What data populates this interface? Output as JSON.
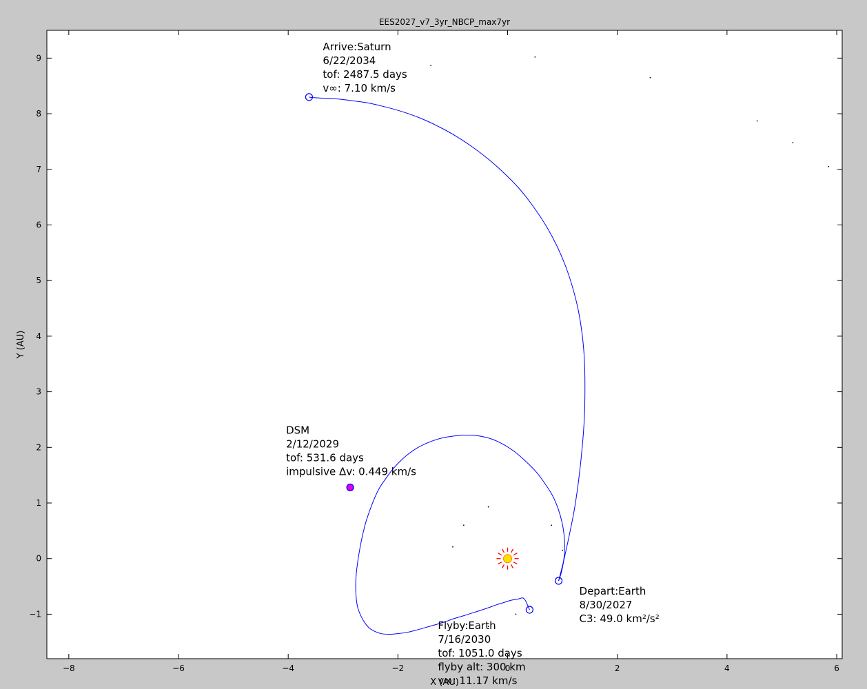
{
  "chart_data": {
    "type": "line",
    "title": "EES2027_v7_3yr_NBCP_max7yr",
    "xlabel": "X (AU)",
    "ylabel": "Y (AU)",
    "xlim": [
      -8.4,
      6.1
    ],
    "ylim": [
      -1.8,
      9.5
    ],
    "xticks": [
      -8,
      -6,
      -4,
      -2,
      0,
      2,
      4,
      6
    ],
    "yticks": [
      -1,
      0,
      1,
      2,
      3,
      4,
      5,
      6,
      7,
      8,
      9
    ],
    "grid": false,
    "trajectory_color": "#0000ff",
    "series": [
      {
        "x": [
          0.93,
          0.98,
          1.02,
          1.04,
          1.03,
          0.99,
          0.92,
          0.82,
          0.68,
          0.52,
          0.33,
          0.13,
          -0.09,
          -0.32,
          -0.55,
          -0.78,
          -1.01,
          -1.23,
          -1.44,
          -1.63,
          -1.81,
          -1.96,
          -2.1,
          -2.22,
          -2.33,
          -2.42,
          -2.5,
          -2.58,
          -2.64,
          -2.69,
          -2.73,
          -2.76,
          -2.77,
          -2.76,
          -2.73,
          -2.67,
          -2.6,
          -2.52,
          -2.42,
          -2.3,
          -2.16,
          -2.01,
          -1.85,
          -1.68,
          -1.5,
          -1.32,
          -1.15,
          -0.98,
          -0.81,
          -0.65,
          -0.49,
          -0.34,
          -0.2,
          -0.07,
          0.06,
          0.18,
          0.3,
          0.4
        ],
        "y": [
          -0.4,
          -0.25,
          -0.05,
          0.18,
          0.42,
          0.66,
          0.9,
          1.13,
          1.35,
          1.56,
          1.75,
          1.92,
          2.06,
          2.16,
          2.21,
          2.22,
          2.2,
          2.16,
          2.09,
          2.0,
          1.88,
          1.75,
          1.6,
          1.44,
          1.28,
          1.1,
          0.9,
          0.67,
          0.44,
          0.2,
          -0.04,
          -0.28,
          -0.5,
          -0.71,
          -0.89,
          -1.04,
          -1.16,
          -1.25,
          -1.31,
          -1.35,
          -1.36,
          -1.35,
          -1.33,
          -1.29,
          -1.24,
          -1.19,
          -1.14,
          -1.08,
          -1.03,
          -0.98,
          -0.93,
          -0.88,
          -0.83,
          -0.79,
          -0.75,
          -0.73,
          -0.72,
          -0.92
        ]
      },
      {
        "x": [
          0.93,
          1.02,
          1.12,
          1.22,
          1.3,
          1.36,
          1.4,
          1.41,
          1.4,
          1.36,
          1.29,
          1.19,
          1.06,
          0.9,
          0.71,
          0.49,
          0.25,
          -0.02,
          -0.31,
          -0.61,
          -0.93,
          -1.26,
          -1.59,
          -1.93,
          -2.26,
          -2.58,
          -2.88,
          -3.15,
          -3.38,
          -3.56,
          -3.62
        ],
        "y": [
          -0.4,
          -0.05,
          0.4,
          0.9,
          1.45,
          2.0,
          2.55,
          3.08,
          3.57,
          4.03,
          4.46,
          4.86,
          5.25,
          5.62,
          5.97,
          6.3,
          6.61,
          6.89,
          7.15,
          7.38,
          7.59,
          7.77,
          7.92,
          8.04,
          8.13,
          8.2,
          8.24,
          8.27,
          8.28,
          8.29,
          8.3
        ]
      }
    ],
    "events": [
      {
        "x": 0.93,
        "y": -0.4,
        "lines": [
          "Depart:Earth",
          "8/30/2027",
          "C3: 49.0 km²/s²"
        ],
        "marker_fill": "none"
      },
      {
        "x": -2.87,
        "y": 1.28,
        "lines": [
          "DSM",
          "2/12/2029",
          "tof: 531.6 days",
          "impulsive Δv: 0.449 km/s"
        ],
        "marker_fill": "#e000e0"
      },
      {
        "x": 0.4,
        "y": -0.92,
        "lines": [
          "Flyby:Earth",
          "7/16/2030",
          "tof: 1051.0 days",
          "flyby alt: 300 km",
          "v∞: 11.17 km/s"
        ],
        "marker_fill": "none"
      },
      {
        "x": -3.62,
        "y": 8.3,
        "lines": [
          "Arrive:Saturn",
          "6/22/2034",
          "tof: 2487.5 days",
          "v∞: 7.10 km/s"
        ],
        "marker_fill": "none"
      }
    ],
    "sun": {
      "x": 0.0,
      "y": 0.0,
      "fill": "#ffe000",
      "ray_color": "#ff0000"
    },
    "background_dots": [
      {
        "x": -1.4,
        "y": 8.87
      },
      {
        "x": 0.5,
        "y": 9.02
      },
      {
        "x": 2.6,
        "y": 8.65
      },
      {
        "x": 4.55,
        "y": 7.87
      },
      {
        "x": 5.2,
        "y": 7.48
      },
      {
        "x": 5.85,
        "y": 7.05
      },
      {
        "x": -0.35,
        "y": 0.93
      },
      {
        "x": -0.8,
        "y": 0.6
      },
      {
        "x": -1.0,
        "y": 0.21
      },
      {
        "x": 0.8,
        "y": 0.6
      },
      {
        "x": 1.0,
        "y": 0.15
      },
      {
        "x": 0.15,
        "y": -1.0
      },
      {
        "x": -0.35,
        "y": -1.22
      }
    ]
  }
}
